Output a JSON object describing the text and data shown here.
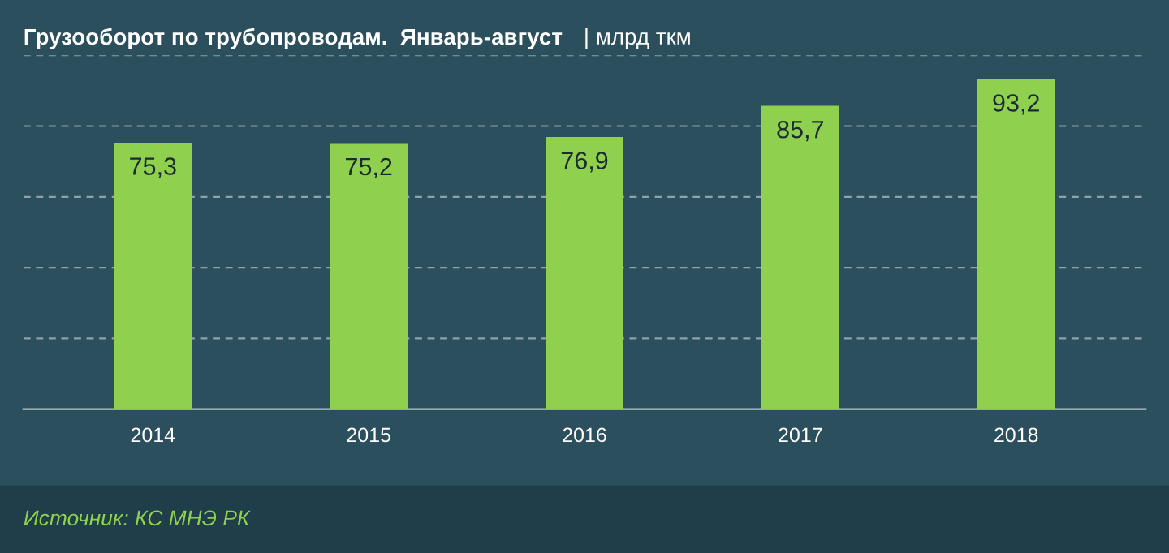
{
  "chart_data": {
    "type": "bar",
    "title": "Грузооборот по трубопроводам.  Январь-август",
    "subtitle": "| млрд ткм",
    "categories": [
      "2014",
      "2015",
      "2016",
      "2017",
      "2018"
    ],
    "values": [
      75.3,
      75.2,
      76.9,
      85.7,
      93.2
    ],
    "value_labels": [
      "75,3",
      "75,2",
      "76,9",
      "85,7",
      "93,2"
    ],
    "color": "#8fd14f",
    "yticks": [
      {
        "value": 20,
        "label": null
      },
      {
        "value": 40,
        "label": null
      },
      {
        "value": 60,
        "label": null
      },
      {
        "value": 80,
        "label": null
      },
      {
        "value": 100,
        "label": null
      }
    ],
    "grid": "y",
    "tick_labels": "x",
    "annotations": [
      "Источник: КС МНЭ РК"
    ]
  }
}
